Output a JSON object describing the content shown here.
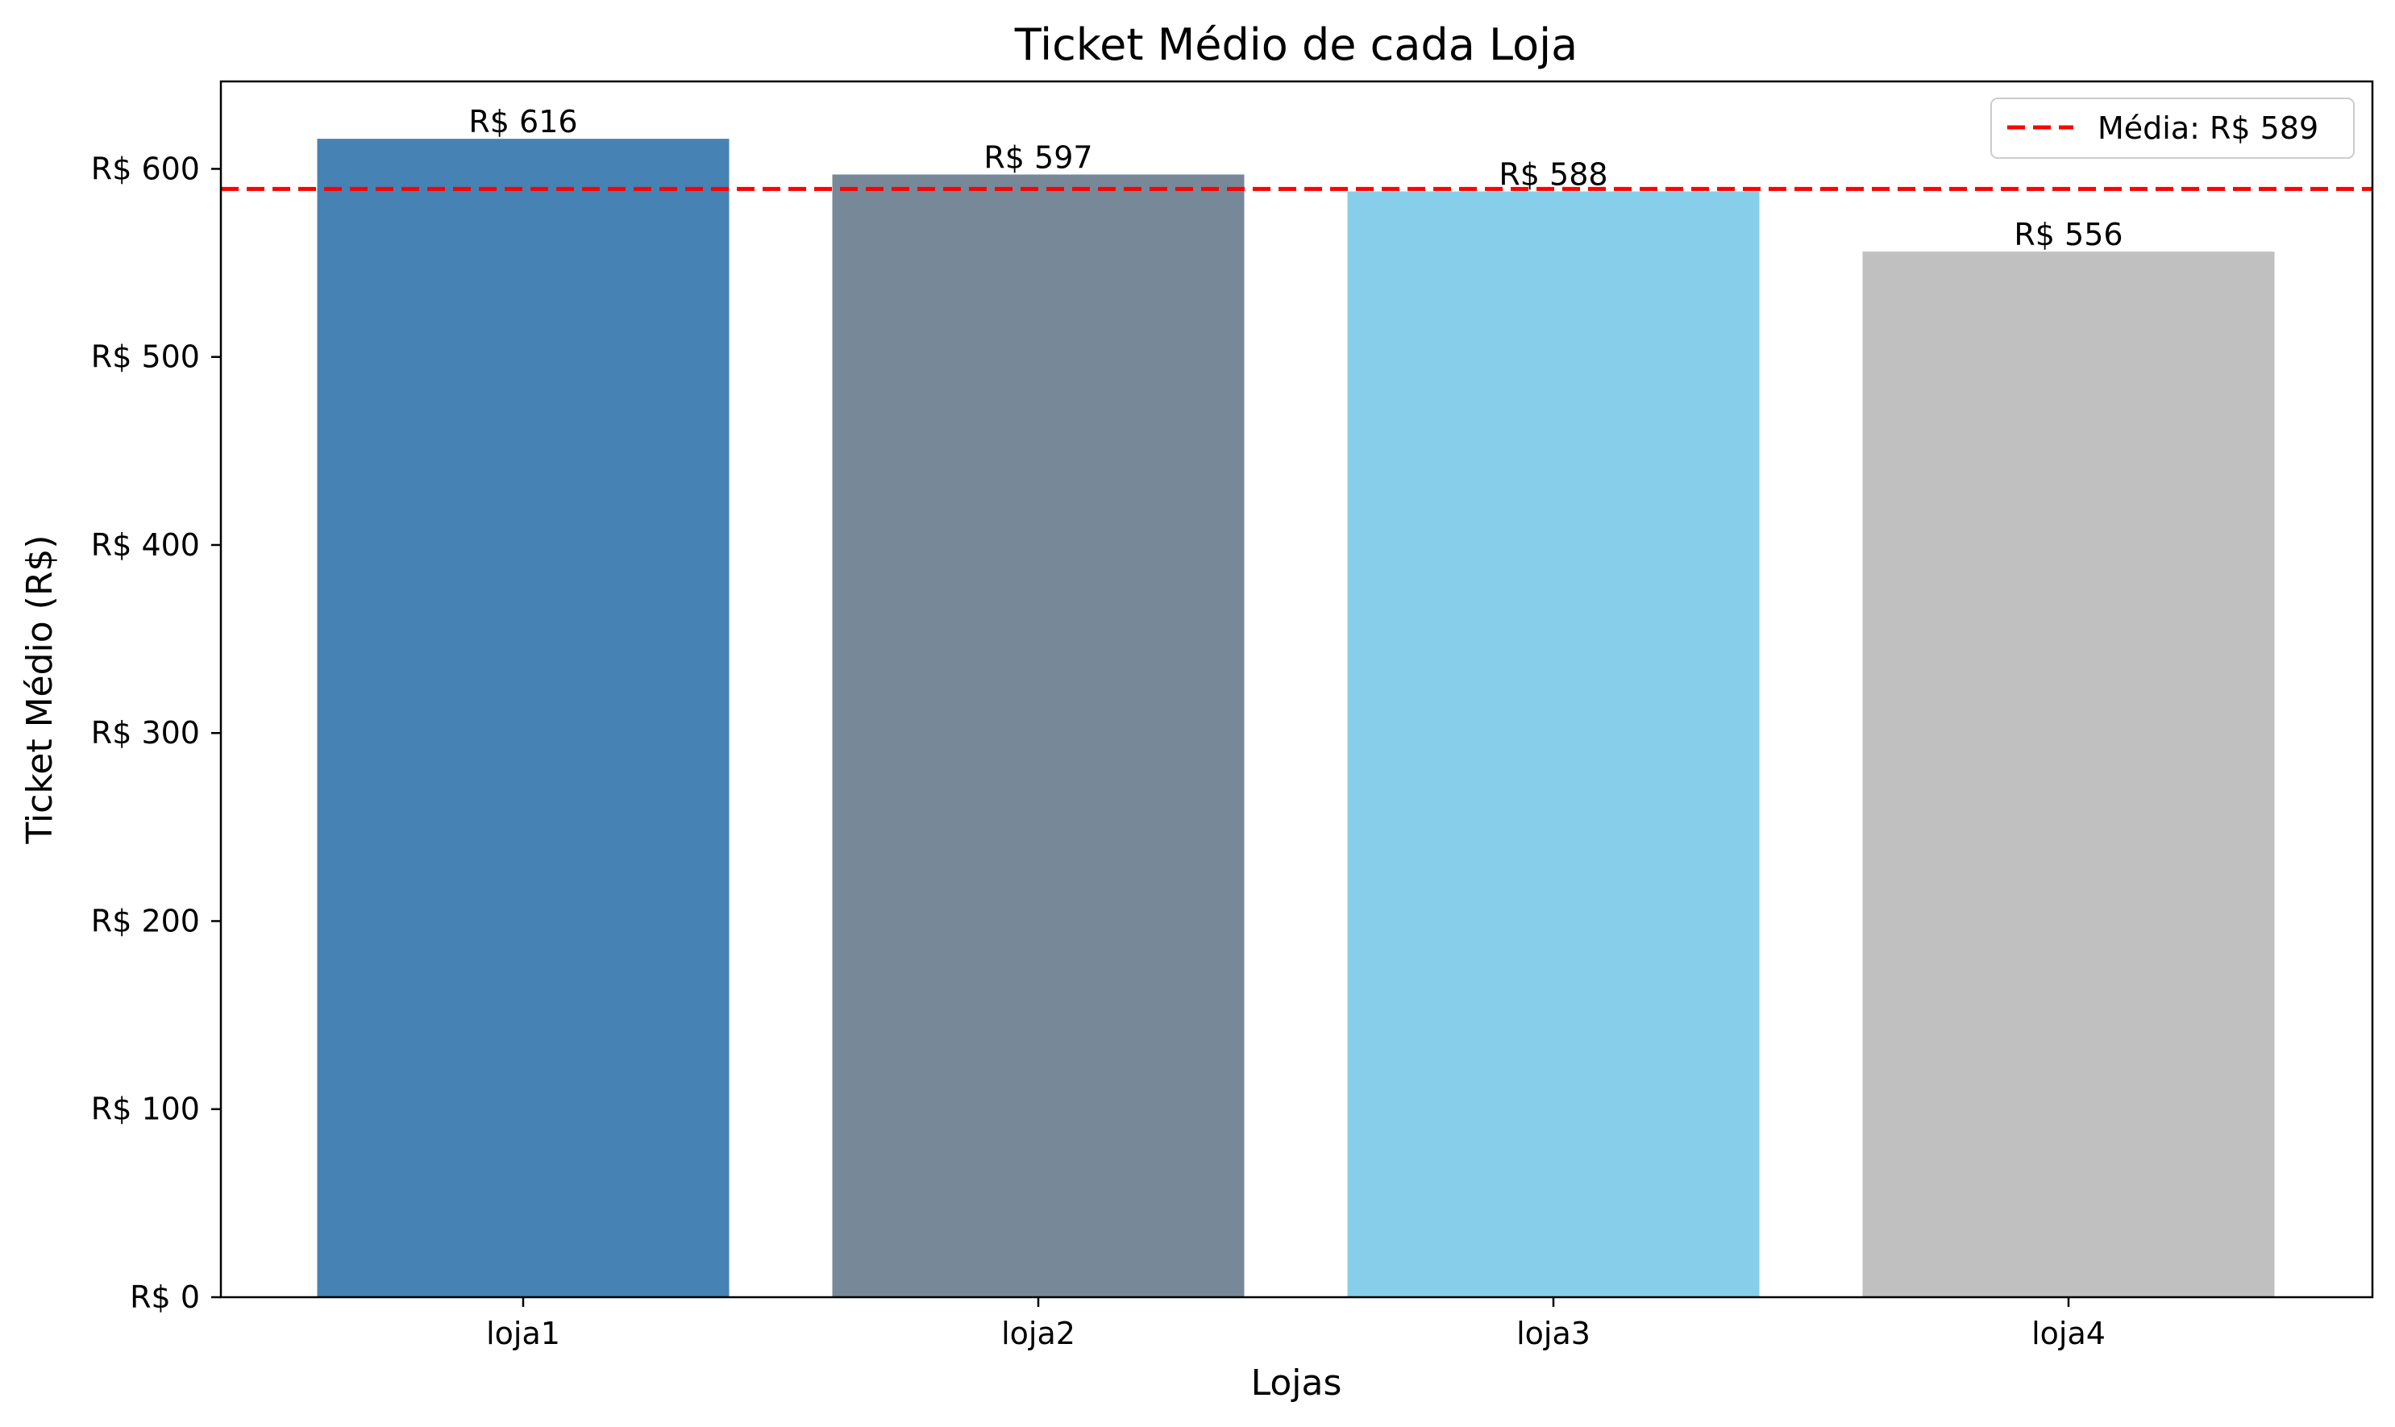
{
  "chart_data": {
    "type": "bar",
    "title": "Ticket Médio de cada Loja",
    "xlabel": "Lojas",
    "ylabel": "Ticket Médio (R$)",
    "categories": [
      "loja1",
      "loja2",
      "loja3",
      "loja4"
    ],
    "values": [
      616,
      597,
      588,
      556
    ],
    "value_labels": [
      "R$ 616",
      "R$ 597",
      "R$ 588",
      "R$ 556"
    ],
    "bar_colors": [
      "#4682b4",
      "#778899",
      "#87ceeb",
      "#c0c0c0"
    ],
    "ylim": [
      0,
      646.5
    ],
    "yticks": [
      0,
      100,
      200,
      300,
      400,
      500,
      600
    ],
    "ytick_labels": [
      "R$ 0",
      "R$ 100",
      "R$ 200",
      "R$ 300",
      "R$ 400",
      "R$ 500",
      "R$ 600"
    ],
    "reference_line": {
      "value": 589.3,
      "color": "#ff0000",
      "style": "dashed"
    },
    "legend": {
      "placement": "top-right",
      "entries": [
        {
          "label": "Média: R$ 589",
          "color": "#ff0000",
          "style": "dashed"
        }
      ]
    },
    "grid": false
  }
}
